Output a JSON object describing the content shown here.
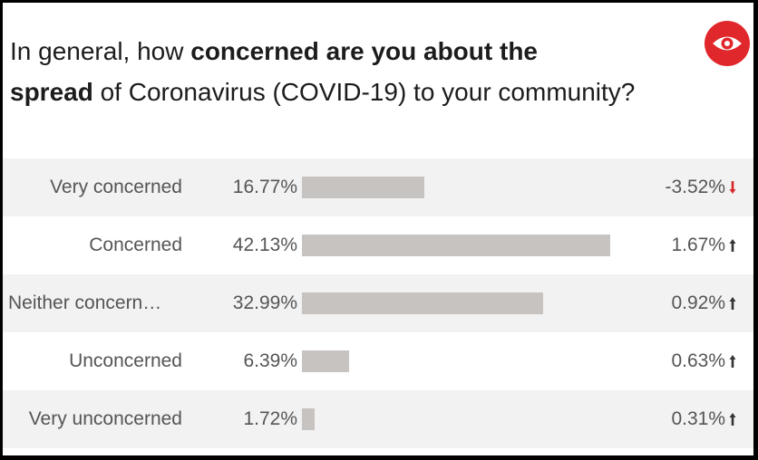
{
  "question": {
    "part1": "In general, how ",
    "bold1": "concerned are you about the",
    "bold2": "spread",
    "part2": " of Coronavirus (COVID-19) to your community?"
  },
  "logo": {
    "icon": "eye-icon",
    "color": "#e0272b"
  },
  "colors": {
    "bar": "#c7c3c1",
    "arrow_up": "#333333",
    "arrow_down": "#d62728",
    "stripe": "#f2f2f2"
  },
  "chart_data": {
    "type": "bar",
    "orientation": "horizontal",
    "title": "In general, how concerned are you about the spread of Coronavirus (COVID-19) to your community?",
    "categories": [
      "Very concerned",
      "Concerned",
      "Neither concern…",
      "Unconcerned",
      "Very unconcerned"
    ],
    "rows": [
      {
        "label": "Very concerned",
        "value": 16.77,
        "value_label": "16.77%",
        "change": -3.52,
        "change_label": "-3.52%",
        "direction": "down"
      },
      {
        "label": "Concerned",
        "value": 42.13,
        "value_label": "42.13%",
        "change": 1.67,
        "change_label": "1.67%",
        "direction": "up"
      },
      {
        "label": "Neither concern…",
        "value": 32.99,
        "value_label": "32.99%",
        "change": 0.92,
        "change_label": "0.92%",
        "direction": "up"
      },
      {
        "label": "Unconcerned",
        "value": 6.39,
        "value_label": "6.39%",
        "change": 0.63,
        "change_label": "0.63%",
        "direction": "up"
      },
      {
        "label": "Very unconcerned",
        "value": 1.72,
        "value_label": "1.72%",
        "change": 0.31,
        "change_label": "0.31%",
        "direction": "up"
      }
    ],
    "xlim": [
      0,
      42.13
    ],
    "grid": false,
    "legend": "none"
  }
}
